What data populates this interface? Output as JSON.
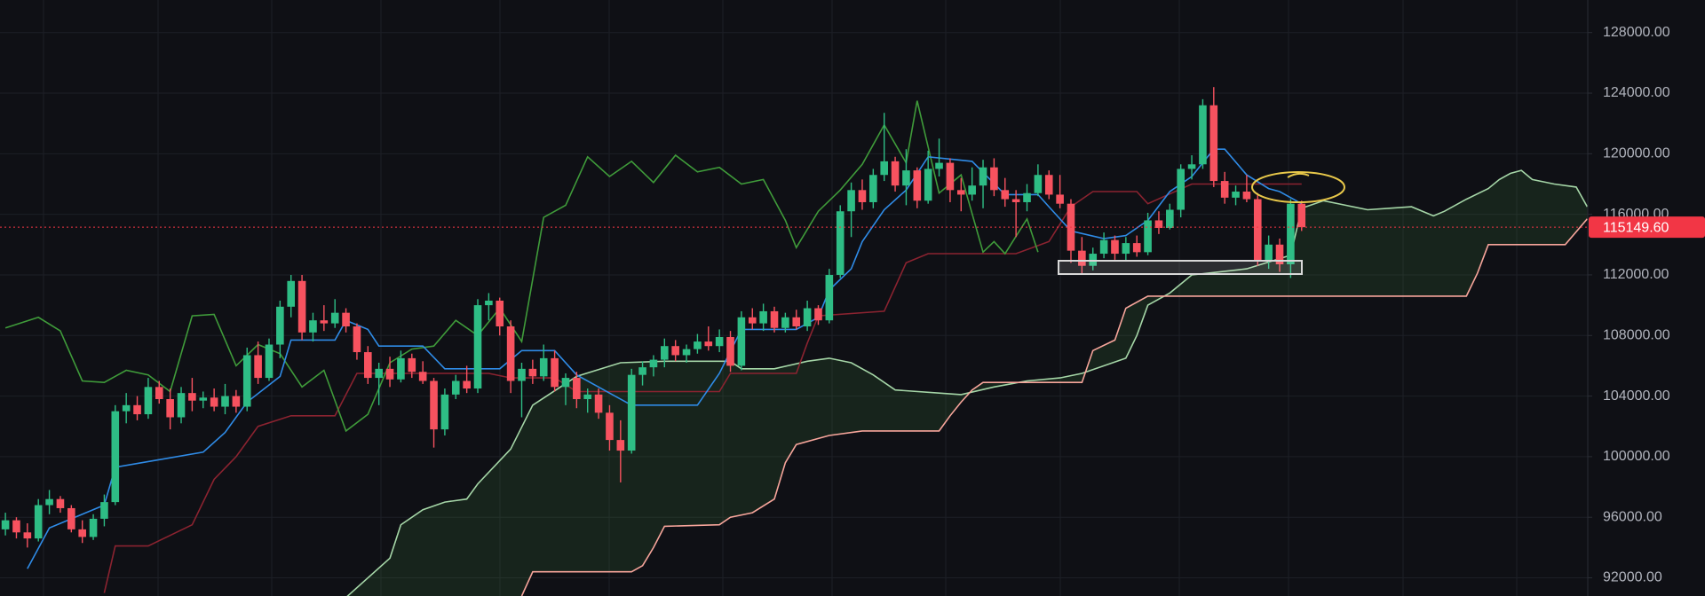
{
  "chart_data": {
    "type": "candlestick",
    "up_color": "#2ebd85",
    "down_color": "#f7525f",
    "grid": true,
    "ylim": [
      90800,
      130150
    ],
    "yticks": [
      {
        "value": 92000,
        "label": "92000.00"
      },
      {
        "value": 96000,
        "label": "96000.00"
      },
      {
        "value": 100000,
        "label": "100000.00"
      },
      {
        "value": 104000,
        "label": "104000.00"
      },
      {
        "value": 108000,
        "label": "108000.00"
      },
      {
        "value": 112000,
        "label": "112000.00"
      },
      {
        "value": 116000,
        "label": "116000.00"
      },
      {
        "value": 120000,
        "label": "120000.00"
      },
      {
        "value": 124000,
        "label": "124000.00"
      },
      {
        "value": 128000,
        "label": "128000.00"
      }
    ],
    "open": [
      95200,
      95800,
      95000,
      94600,
      96800,
      97200,
      96600,
      95200,
      94700,
      95900,
      97000,
      103000,
      103400,
      102800,
      104600,
      103800,
      102600,
      104200,
      103700,
      103900,
      103300,
      104000,
      103300,
      106700,
      105200,
      107400,
      109900,
      111600,
      108200,
      109000,
      108800,
      109500,
      108600,
      106900,
      105200,
      105800,
      105100,
      106500,
      105600,
      105000,
      101800,
      104100,
      105000,
      104500,
      110000,
      110300,
      108600,
      105000,
      105800,
      105300,
      106500,
      104600,
      105200,
      103800,
      104100,
      102900,
      101100,
      100400,
      105400,
      105900,
      106400,
      107300,
      106700,
      107100,
      107600,
      107300,
      107900,
      106000,
      109200,
      108800,
      109600,
      108500,
      109200,
      108600,
      109800,
      109000,
      112000,
      116200,
      117600,
      116800,
      118600,
      119500,
      117900,
      118900,
      116900,
      119000,
      119400,
      117600,
      117300,
      117900,
      119100,
      117600,
      117000,
      116800,
      117400,
      118600,
      117300,
      116700,
      113600,
      112600,
      113400,
      114300,
      113400,
      114100,
      113500,
      115600,
      115100,
      116300,
      119000,
      119300,
      123200,
      118200,
      117100,
      117500,
      117000,
      112900,
      114000,
      112700,
      116700
    ],
    "high": [
      96300,
      96000,
      95600,
      97200,
      97800,
      97400,
      96800,
      95800,
      96200,
      97500,
      103400,
      104200,
      104000,
      105200,
      105000,
      104500,
      104600,
      105200,
      104300,
      104500,
      104800,
      104400,
      107200,
      107600,
      107800,
      110300,
      112000,
      112000,
      109500,
      110000,
      110400,
      109800,
      108800,
      107300,
      106200,
      106600,
      107000,
      106800,
      106300,
      105200,
      104500,
      105400,
      106000,
      110400,
      110800,
      110500,
      109000,
      106200,
      106400,
      107400,
      107000,
      105500,
      105600,
      104500,
      104500,
      103400,
      102400,
      105800,
      106300,
      106700,
      107800,
      107700,
      107400,
      108100,
      108600,
      108400,
      108300,
      109600,
      109800,
      110100,
      109900,
      109500,
      109700,
      110300,
      110000,
      112400,
      116600,
      118100,
      118300,
      119000,
      122700,
      119800,
      120300,
      119100,
      120200,
      121000,
      119700,
      118400,
      119100,
      119600,
      119700,
      118400,
      117600,
      118000,
      119300,
      118900,
      118600,
      117000,
      114500,
      113800,
      114800,
      114600,
      114500,
      114600,
      116100,
      116200,
      116700,
      119300,
      119900,
      123600,
      124400,
      118800,
      117900,
      118600,
      117400,
      114600,
      114400,
      117000,
      116900
    ],
    "low": [
      94800,
      94600,
      94000,
      94400,
      96200,
      96300,
      95000,
      94300,
      94500,
      95400,
      96800,
      102200,
      102400,
      102500,
      103500,
      101800,
      102200,
      103000,
      103200,
      103000,
      102800,
      102900,
      103000,
      104800,
      105000,
      106500,
      109200,
      107700,
      107600,
      108300,
      108500,
      108200,
      106400,
      104800,
      103400,
      104600,
      104900,
      105200,
      104800,
      100600,
      101400,
      103800,
      104200,
      104200,
      109000,
      108000,
      104200,
      102600,
      104800,
      105000,
      104300,
      103400,
      103200,
      102900,
      102500,
      100400,
      98300,
      100200,
      104700,
      105300,
      105900,
      106300,
      106200,
      106800,
      107000,
      106900,
      105600,
      105700,
      108400,
      108300,
      108200,
      108200,
      108400,
      108300,
      108700,
      108800,
      111800,
      114500,
      116300,
      116400,
      118200,
      117500,
      116600,
      116400,
      116700,
      118500,
      116800,
      116200,
      116900,
      116400,
      117200,
      116500,
      114500,
      116200,
      117200,
      117000,
      116400,
      112800,
      112100,
      112300,
      113100,
      113000,
      112900,
      113200,
      113300,
      114700,
      115000,
      115800,
      118300,
      119000,
      117800,
      116700,
      116600,
      116800,
      112600,
      112400,
      112200,
      111800,
      114900
    ],
    "close": [
      95800,
      95000,
      94600,
      96800,
      97200,
      96600,
      95200,
      94700,
      95900,
      97000,
      103000,
      103400,
      102800,
      104600,
      103800,
      102600,
      104200,
      103700,
      103900,
      103300,
      104000,
      103300,
      106700,
      105200,
      107400,
      109900,
      111600,
      108200,
      109000,
      108800,
      109500,
      108600,
      106900,
      105200,
      105800,
      105100,
      106500,
      105600,
      105000,
      101800,
      104100,
      105000,
      104500,
      110000,
      110300,
      108600,
      105000,
      105800,
      105300,
      106500,
      104600,
      105200,
      103800,
      104100,
      102900,
      101100,
      100400,
      105400,
      105900,
      106400,
      107300,
      106700,
      107100,
      107600,
      107300,
      107900,
      106000,
      109200,
      108800,
      109600,
      108500,
      109200,
      108600,
      109800,
      109000,
      112000,
      116200,
      117600,
      116800,
      118600,
      119500,
      117900,
      118900,
      116900,
      119000,
      119400,
      117600,
      117300,
      117900,
      119100,
      117600,
      117000,
      116800,
      117400,
      118600,
      117300,
      116700,
      113600,
      112600,
      113400,
      114300,
      113400,
      114100,
      113500,
      115600,
      115100,
      116300,
      119000,
      119300,
      123200,
      118200,
      117100,
      117500,
      117000,
      112900,
      114000,
      112700,
      116700,
      115149.6
    ],
    "cloud_color": "rgba(70,140,70,0.16)",
    "lines": [
      {
        "color": "#a5d6a7",
        "x": [
          31,
          35,
          36,
          38,
          40,
          42,
          43,
          46,
          48,
          52,
          56,
          60,
          66,
          67,
          70,
          73,
          75,
          77,
          79,
          81,
          85,
          87,
          90,
          93,
          96,
          98,
          102,
          103,
          104,
          106,
          108,
          113,
          117,
          118,
          120,
          122,
          124,
          126,
          128,
          130,
          131,
          133,
          135,
          136,
          137,
          138,
          139,
          141,
          143,
          144
        ],
        "values": [
          90700,
          93300,
          95500,
          96500,
          97000,
          97200,
          98200,
          100500,
          103400,
          105300,
          106200,
          106300,
          106300,
          105800,
          105800,
          106300,
          106500,
          106200,
          105400,
          104400,
          104200,
          104100,
          104600,
          105000,
          105200,
          105500,
          106500,
          108000,
          110000,
          110800,
          112000,
          112400,
          113300,
          116400,
          116900,
          116600,
          116300,
          116400,
          116500,
          115900,
          116200,
          117000,
          117700,
          118300,
          118700,
          118900,
          118300,
          118000,
          117800,
          116500
        ]
      },
      {
        "color": "#f7a59b",
        "x": [
          47,
          48,
          57,
          58,
          59,
          60,
          65,
          66,
          68,
          70,
          71,
          72,
          75,
          78,
          85,
          86,
          87,
          88,
          89,
          98,
          99,
          101,
          102,
          104,
          133,
          134,
          135,
          142,
          144
        ],
        "values": [
          90800,
          92400,
          92400,
          92800,
          94000,
          95400,
          95500,
          96000,
          96300,
          97200,
          99600,
          100800,
          101400,
          101700,
          101700,
          102700,
          103600,
          104400,
          104900,
          104900,
          107000,
          107700,
          109800,
          110600,
          110600,
          112100,
          114000,
          114000,
          115700
        ]
      },
      {
        "color": "#8b2330",
        "x": [
          9,
          10,
          13,
          17,
          19,
          21,
          23,
          26,
          30,
          32,
          44,
          46,
          50,
          52,
          65,
          66,
          72,
          73,
          74,
          80,
          82,
          84,
          92,
          95,
          97,
          99,
          103,
          104,
          108,
          118
        ],
        "values": [
          91000,
          94100,
          94100,
          95500,
          98500,
          100000,
          102000,
          102700,
          102700,
          105500,
          105500,
          105200,
          105200,
          104300,
          104300,
          105500,
          105500,
          107500,
          109300,
          109600,
          112800,
          113400,
          113400,
          114200,
          116500,
          117500,
          117500,
          116700,
          118000,
          118000
        ]
      },
      {
        "color": "#3f9b3a",
        "x": [
          0,
          3,
          5,
          7,
          9,
          11,
          13,
          15,
          17,
          19,
          21,
          23,
          25,
          27,
          29,
          31,
          33,
          35,
          37,
          39,
          41,
          43,
          45,
          47,
          49,
          51,
          53,
          55,
          57,
          59,
          61,
          63,
          65,
          67,
          69,
          71,
          72,
          74,
          76,
          78,
          80,
          82,
          83,
          85,
          87,
          89,
          90,
          91,
          93,
          94
        ],
        "values": [
          108500,
          109200,
          108300,
          105000,
          104900,
          105700,
          105400,
          104300,
          109300,
          109400,
          106000,
          107400,
          106800,
          104600,
          105700,
          101700,
          102800,
          106200,
          107100,
          107300,
          109000,
          108000,
          109800,
          107600,
          115800,
          116600,
          119800,
          118500,
          119500,
          118100,
          119900,
          118800,
          119100,
          118000,
          118300,
          115600,
          113800,
          116200,
          117600,
          119300,
          121900,
          119400,
          123500,
          117400,
          118600,
          113500,
          114200,
          113400,
          115700,
          113500
        ]
      },
      {
        "color": "#2f8be6",
        "x": [
          2,
          4,
          9,
          10,
          14,
          18,
          20,
          22,
          25,
          26,
          30,
          31,
          33,
          34,
          38,
          40,
          45,
          47,
          50,
          52,
          55,
          57,
          63,
          65,
          67,
          72,
          74,
          75,
          77,
          78,
          80,
          82,
          84,
          88,
          91,
          94,
          95,
          97,
          100,
          102,
          104,
          106,
          108,
          110,
          111,
          113,
          115,
          116,
          118
        ],
        "values": [
          92600,
          95300,
          96800,
          99300,
          99800,
          100300,
          101600,
          103600,
          105300,
          107700,
          107700,
          109000,
          108400,
          107300,
          107300,
          105800,
          105800,
          107000,
          107000,
          105400,
          104200,
          103400,
          103400,
          105500,
          108400,
          108400,
          109200,
          111000,
          112400,
          114200,
          116300,
          117600,
          119800,
          119500,
          117300,
          117300,
          116500,
          114900,
          114400,
          114600,
          115600,
          117500,
          118500,
          120300,
          120300,
          118600,
          117700,
          117500,
          116700
        ]
      }
    ],
    "price_line": {
      "value": 115149.6,
      "label": "115149.60",
      "color": "#f23645"
    }
  }
}
